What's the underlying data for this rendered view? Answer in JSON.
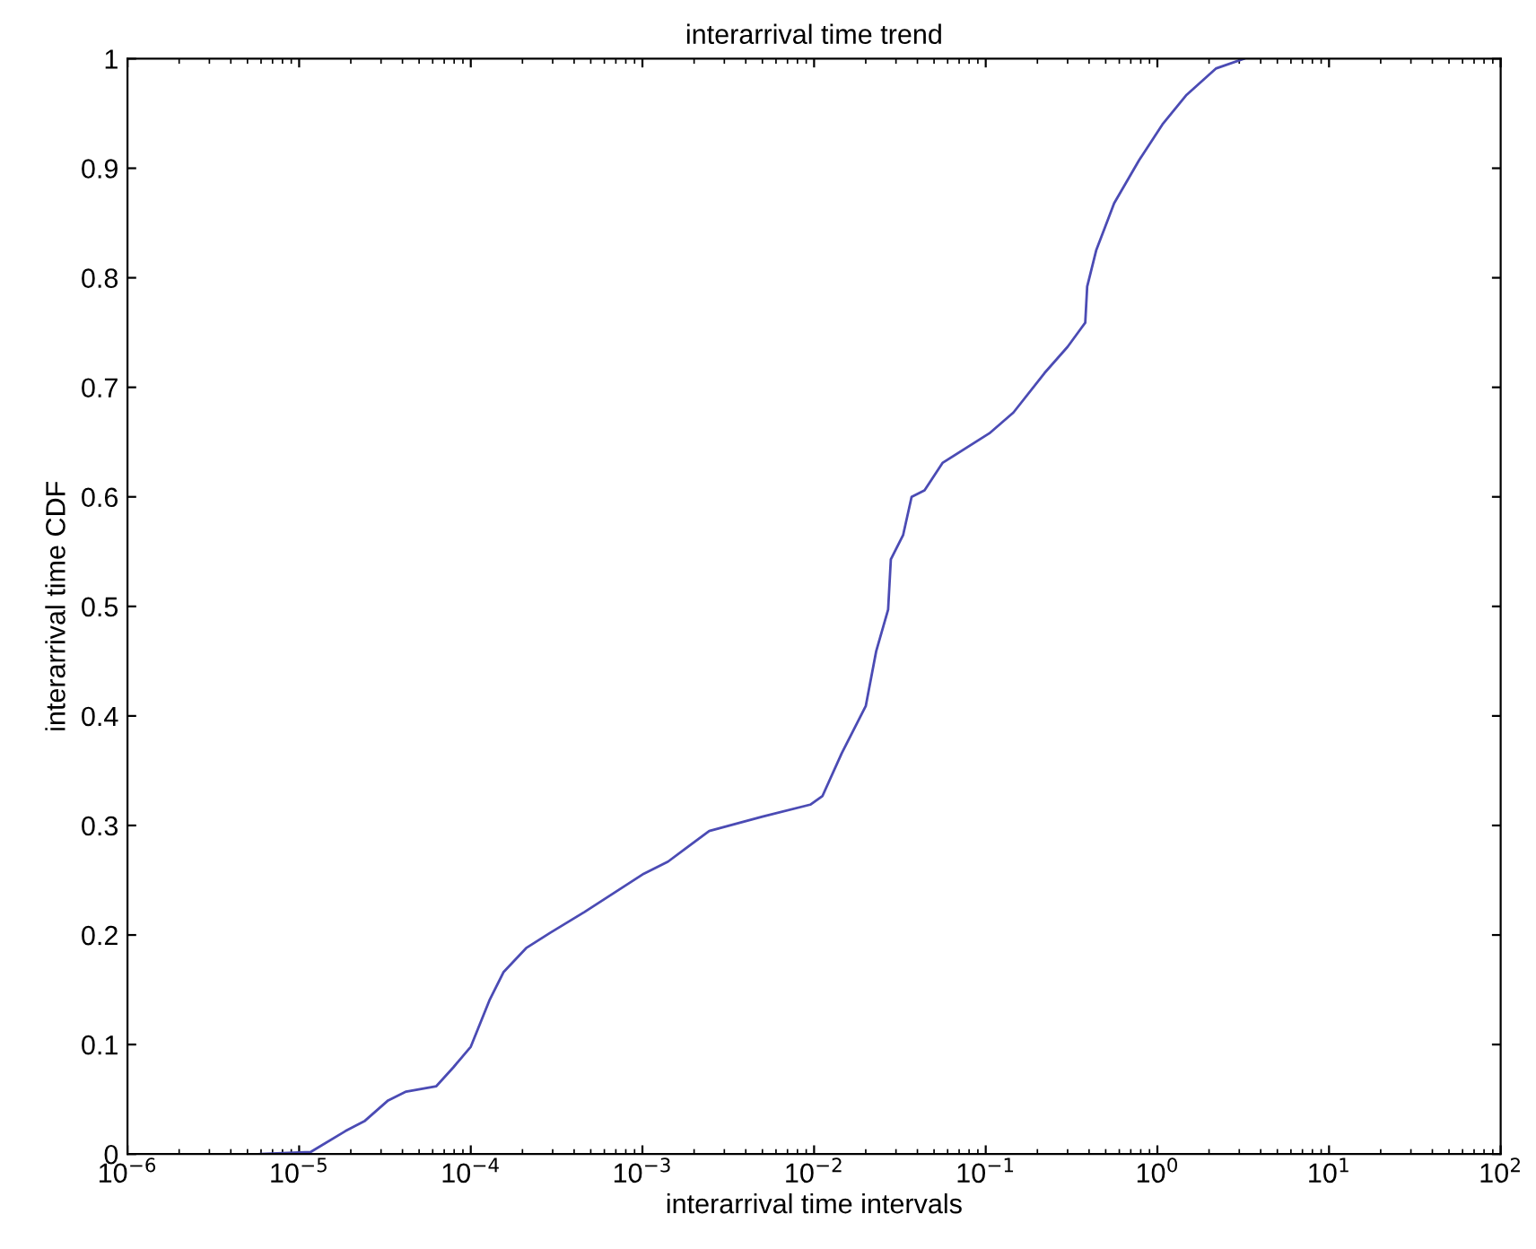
{
  "chart_data": {
    "type": "line",
    "title": "interarrival time trend",
    "xlabel": "interarrival time intervals",
    "ylabel": "interarrival time CDF",
    "log": "x",
    "grid": false,
    "legend": false,
    "marker": "none",
    "line_style": "solid",
    "xlim": [
      1e-06,
      100
    ],
    "ylim": [
      0,
      1
    ],
    "xticks": [
      {
        "value": 1e-06,
        "label": "10$^{−6}$"
      },
      {
        "value": 1e-05,
        "label": "10$^{−5}$"
      },
      {
        "value": 0.0001,
        "label": "10$^{−4}$"
      },
      {
        "value": 0.001,
        "label": "10$^{−3}$"
      },
      {
        "value": 0.01,
        "label": "10$^{−2}$"
      },
      {
        "value": 0.1,
        "label": "10$^{−1}$"
      },
      {
        "value": 1,
        "label": "10$^{0}$"
      },
      {
        "value": 10,
        "label": "10$^{1}$"
      },
      {
        "value": 100,
        "label": "10$^{2}$"
      }
    ],
    "yticks": [
      0,
      0.1,
      0.2,
      0.3,
      0.4,
      0.5,
      0.6,
      0.7,
      0.8,
      0.9,
      1
    ],
    "series": [
      {
        "color": "#4b4bb4",
        "x": [
          5.9e-06,
          1.17e-05,
          1.86e-05,
          2.4e-05,
          3.3e-05,
          4.2e-05,
          6.3e-05,
          7.9e-05,
          0.0001,
          0.000129,
          0.000155,
          0.00021,
          0.00029,
          0.00046,
          0.00102,
          0.00141,
          0.00245,
          0.005,
          0.0095,
          0.0112,
          0.0145,
          0.02,
          0.023,
          0.027,
          0.028,
          0.033,
          0.037,
          0.044,
          0.056,
          0.105,
          0.145,
          0.22,
          0.3,
          0.36,
          0.38,
          0.39,
          0.44,
          0.56,
          0.78,
          1.07,
          1.48,
          2.19,
          3.2
        ],
        "values": [
          0,
          0.002,
          0.021,
          0.03,
          0.049,
          0.057,
          0.062,
          0.079,
          0.098,
          0.141,
          0.166,
          0.188,
          0.202,
          0.221,
          0.256,
          0.267,
          0.295,
          0.308,
          0.319,
          0.327,
          0.366,
          0.409,
          0.459,
          0.497,
          0.543,
          0.565,
          0.6,
          0.606,
          0.631,
          0.658,
          0.677,
          0.713,
          0.737,
          0.754,
          0.759,
          0.792,
          0.825,
          0.868,
          0.907,
          0.94,
          0.967,
          0.991,
          1.0
        ]
      }
    ]
  }
}
